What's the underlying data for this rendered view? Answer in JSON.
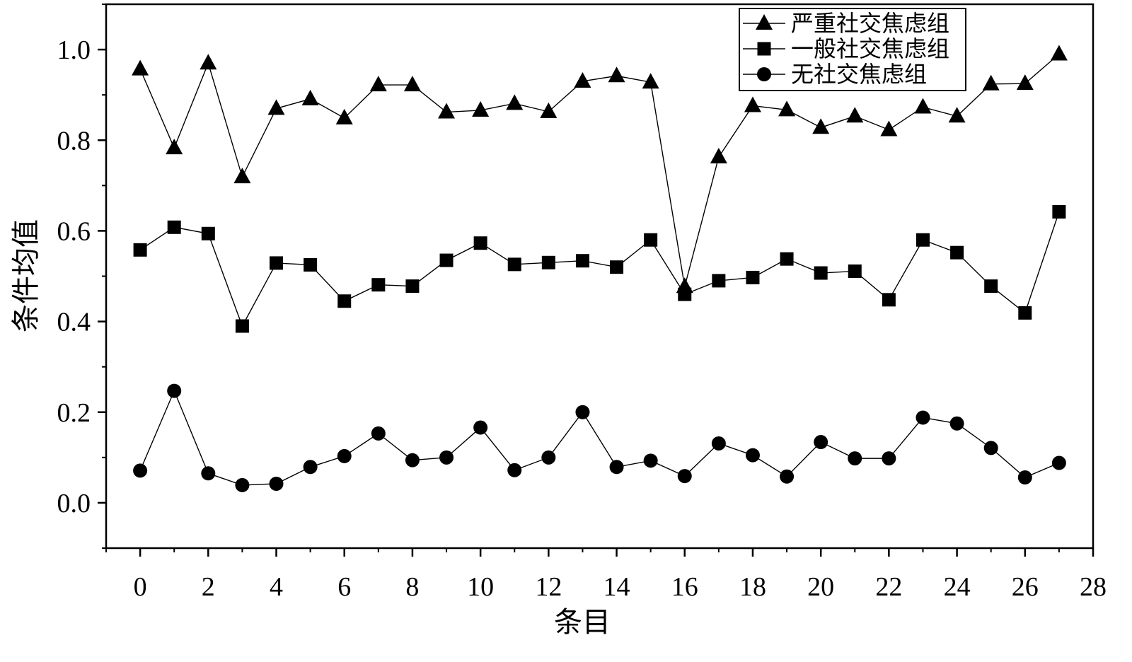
{
  "chart_data": {
    "type": "line",
    "title": "",
    "xlabel": "条目",
    "ylabel": "条件均值",
    "xlim": [
      -1,
      28
    ],
    "ylim": [
      -0.1,
      1.1
    ],
    "xticks": [
      "0",
      "2",
      "4",
      "6",
      "8",
      "10",
      "12",
      "14",
      "16",
      "18",
      "20",
      "22",
      "24",
      "26",
      "28"
    ],
    "yticks": [
      "0.0",
      "0.2",
      "0.4",
      "0.6",
      "0.8",
      "1.0"
    ],
    "grid": false,
    "legend_position": "top-right",
    "x": [
      0,
      1,
      2,
      3,
      4,
      5,
      6,
      7,
      8,
      9,
      10,
      11,
      12,
      13,
      14,
      15,
      16,
      17,
      18,
      19,
      20,
      21,
      22,
      23,
      24,
      25,
      26,
      27
    ],
    "series": [
      {
        "name": "严重社交焦虑组",
        "marker": "triangle",
        "values": [
          0.957,
          0.783,
          0.97,
          0.719,
          0.87,
          0.891,
          0.849,
          0.922,
          0.922,
          0.862,
          0.866,
          0.881,
          0.863,
          0.93,
          0.942,
          0.928,
          0.477,
          0.763,
          0.876,
          0.867,
          0.828,
          0.853,
          0.823,
          0.873,
          0.853,
          0.924,
          0.925,
          0.99
        ]
      },
      {
        "name": "一般社交焦虑组",
        "marker": "square",
        "values": [
          0.558,
          0.608,
          0.594,
          0.39,
          0.529,
          0.525,
          0.445,
          0.481,
          0.478,
          0.535,
          0.573,
          0.526,
          0.53,
          0.534,
          0.52,
          0.58,
          0.46,
          0.49,
          0.497,
          0.538,
          0.507,
          0.511,
          0.448,
          0.58,
          0.552,
          0.478,
          0.419,
          0.642
        ]
      },
      {
        "name": "无社交焦虑组",
        "marker": "circle",
        "values": [
          0.071,
          0.247,
          0.065,
          0.039,
          0.042,
          0.079,
          0.103,
          0.153,
          0.094,
          0.1,
          0.166,
          0.072,
          0.1,
          0.2,
          0.079,
          0.093,
          0.059,
          0.131,
          0.105,
          0.058,
          0.134,
          0.098,
          0.098,
          0.188,
          0.175,
          0.121,
          0.056,
          0.088
        ]
      }
    ],
    "colors": {
      "line": "#000000",
      "marker": "#000000",
      "background": "#ffffff"
    }
  }
}
